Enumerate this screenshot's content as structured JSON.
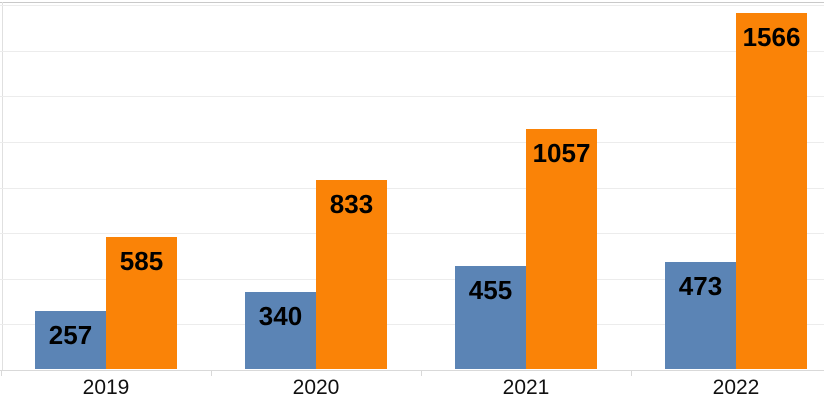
{
  "chart_data": {
    "type": "bar",
    "title": "",
    "xlabel": "",
    "ylabel": "",
    "categories": [
      "2019",
      "2020",
      "2021",
      "2022"
    ],
    "series": [
      {
        "name": "blue-series",
        "color": "#5b84b5",
        "values": [
          257,
          340,
          455,
          473
        ]
      },
      {
        "name": "orange-series",
        "color": "#fa8307",
        "values": [
          585,
          833,
          1057,
          1566
        ]
      }
    ],
    "data_labels": {
      "position": "inside-end",
      "color": "#000000",
      "bold": true
    },
    "legend_position": "none",
    "ylim": [
      0,
      1623
    ],
    "grid": "horizontal",
    "gridline_interval": 200,
    "gridline_values": [
      200,
      400,
      600,
      800,
      1000,
      1200,
      1400,
      1600
    ],
    "axis_colors": {
      "baseline": "#d9d9d9",
      "gridline": "#ececec",
      "tick": "#d9d9d9"
    }
  }
}
